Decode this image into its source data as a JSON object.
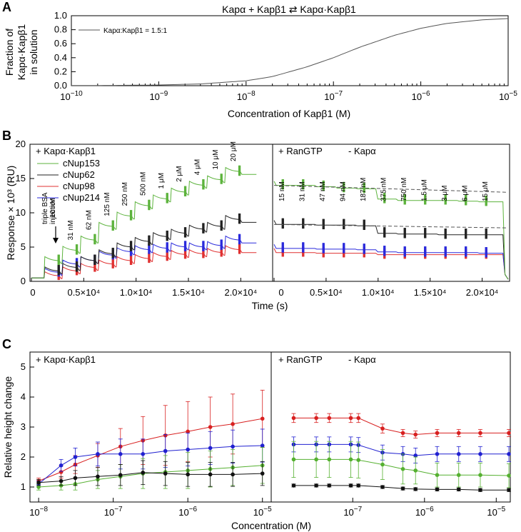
{
  "panel_labels": [
    "A",
    "B",
    "C"
  ],
  "chart_data": [
    {
      "type": "line",
      "panel": "A",
      "title": "Kapα + Kapβ1 ⇄ Kapα·Kapβ1",
      "xlabel": "Concentration of Kapβ1 (M)",
      "ylabel_lines": [
        "Fraction of",
        "Kapα·Kapβ1",
        "in solution"
      ],
      "xscale": "log",
      "xlim": [
        1e-10,
        1e-05
      ],
      "ylim": [
        0,
        1.0
      ],
      "xtick_labels": [
        {
          "base": "10",
          "exp": "−10"
        },
        {
          "base": "10",
          "exp": "−9"
        },
        {
          "base": "10",
          "exp": "−8"
        },
        {
          "base": "10",
          "exp": "−7"
        },
        {
          "base": "10",
          "exp": "−6"
        },
        {
          "base": "10",
          "exp": "−5"
        }
      ],
      "ytick_labels": [
        "0.0",
        "0.2",
        "0.4",
        "0.6",
        "0.8",
        "1.0"
      ],
      "legend_position": "top-left",
      "series": [
        {
          "name": "Kapα:Kapβ1 = 1.5:1",
          "color": "#555555",
          "x": [
            1e-10,
            3e-10,
            1e-09,
            3e-09,
            1e-08,
            2e-08,
            5e-08,
            1e-07,
            2e-07,
            5e-07,
            1e-06,
            2e-06,
            5e-06,
            1e-05
          ],
          "y": [
            0.002,
            0.004,
            0.01,
            0.025,
            0.07,
            0.13,
            0.27,
            0.4,
            0.55,
            0.72,
            0.82,
            0.89,
            0.94,
            0.96
          ]
        }
      ]
    },
    {
      "type": "line",
      "panel": "B",
      "xlabel": "Time (s)",
      "ylabel": "Response × 10³ (RU)",
      "ylim": [
        0,
        20
      ],
      "ytick_labels": [
        "0",
        "5",
        "10",
        "15",
        "20"
      ],
      "xlim": [
        0,
        22500
      ],
      "xtick_labels_left": [
        "0",
        "0.5×10⁴",
        "1.0×10⁴",
        "1.5×10⁴",
        "2.0×10⁴"
      ],
      "xtick_labels_right": [
        "0",
        "0.5×10⁴",
        "1.0×10⁴",
        "1.5×10⁴",
        "2.0×10⁴"
      ],
      "left_header": "+ Kapα·Kapβ1",
      "right_header_1": "+ RanGTP",
      "right_header_2": "- Kapα",
      "legend_position": "top-left",
      "legend": [
        {
          "name": "cNup153",
          "color": "#5cb33c"
        },
        {
          "name": "cNup62",
          "color": "#222222"
        },
        {
          "name": "cNup98",
          "color": "#e03030"
        },
        {
          "name": "cNup214",
          "color": "#2a2adc"
        }
      ],
      "injection_note_lines": [
        "triple BSA",
        "injection"
      ],
      "left_concentrations": [
        "10 nM",
        "31 nM",
        "62 nM",
        "125 nM",
        "250 nM",
        "500 nM",
        "1 μM",
        "2 μM",
        "4 μM",
        "10 μM",
        "20 μM"
      ],
      "right_concentrations": [
        "15 nM",
        "31 nM",
        "47 nM",
        "94 nM",
        "187 nM",
        "375 nM",
        "750 nM",
        "1.5 μM",
        "3 μM",
        "6 μM",
        "15 μM"
      ],
      "left_levels": {
        "cNup153": [
          3.0,
          4.5,
          6.0,
          8.0,
          9.5,
          11.0,
          12.0,
          13.0,
          14.0,
          14.8,
          16.0
        ],
        "cNup62": [
          1.5,
          2.0,
          3.0,
          4.0,
          5.0,
          5.8,
          6.5,
          7.0,
          7.6,
          8.0,
          9.0
        ],
        "cNup214": [
          1.3,
          2.5,
          3.0,
          3.8,
          4.3,
          4.6,
          4.8,
          5.0,
          5.0,
          5.2,
          6.0
        ],
        "cNup98": [
          0.8,
          1.5,
          2.0,
          2.5,
          3.0,
          3.3,
          3.6,
          3.9,
          4.0,
          4.2,
          4.6
        ]
      },
      "right_levels": {
        "cNup153": [
          14.0,
          14.0,
          13.8,
          13.6,
          13.5,
          12.0,
          11.8,
          11.8,
          11.8,
          11.7,
          11.6
        ],
        "cNup62": [
          8.3,
          8.3,
          8.2,
          8.2,
          8.1,
          7.0,
          6.9,
          6.9,
          6.8,
          6.8,
          6.8
        ],
        "cNup214": [
          4.8,
          4.8,
          4.7,
          4.7,
          4.6,
          4.3,
          4.2,
          4.2,
          4.2,
          4.2,
          4.1
        ],
        "cNup98": [
          4.2,
          4.2,
          4.1,
          4.1,
          4.1,
          3.9,
          3.9,
          3.9,
          3.9,
          3.9,
          3.9
        ]
      },
      "dashed_reference": {
        "cNup153": [
          14.0,
          13.0
        ],
        "cNup62": [
          8.3,
          7.8
        ]
      }
    },
    {
      "type": "scatter",
      "panel": "C",
      "xlabel": "Concentration (M)",
      "ylabel": "Relative height change",
      "xscale": "log",
      "ylim": [
        0.5,
        5.5
      ],
      "ytick_labels": [
        "1",
        "2",
        "3",
        "4",
        "5"
      ],
      "left_xlim": [
        8e-09,
        1.2e-05
      ],
      "right_xlim": [
        8e-09,
        1.5e-05
      ],
      "xtick_labels_left": [
        {
          "base": "10",
          "exp": "−8"
        },
        {
          "base": "10",
          "exp": "−7"
        },
        {
          "base": "10",
          "exp": "−6"
        },
        {
          "base": "10",
          "exp": "−5"
        }
      ],
      "xtick_labels_right": [
        {
          "base": "10",
          "exp": "−7"
        },
        {
          "base": "10",
          "exp": "−6"
        },
        {
          "base": "10",
          "exp": "−5"
        }
      ],
      "left_header": "+ Kapα·Kapβ1",
      "right_header_1": "+ RanGTP",
      "right_header_2": "- Kapα",
      "left_x": [
        1e-08,
        2e-08,
        3.1e-08,
        6.2e-08,
        1.25e-07,
        2.5e-07,
        5e-07,
        1e-06,
        2e-06,
        4e-06,
        1e-05
      ],
      "right_x": [
        1.5e-08,
        3.1e-08,
        4.7e-08,
        9.4e-08,
        1.2e-07,
        2.6e-07,
        5e-07,
        7.5e-07,
        1.5e-06,
        3e-06,
        6e-06,
        1.5e-05
      ],
      "series": [
        {
          "name": "cNup98",
          "color": "#d82020",
          "left_y": [
            1.2,
            1.5,
            1.75,
            2.05,
            2.35,
            2.55,
            2.72,
            2.85,
            3.0,
            3.1,
            3.28
          ],
          "left_err": [
            0.1,
            0.2,
            0.3,
            0.4,
            0.6,
            0.8,
            1.0,
            1.0,
            1.0,
            1.0,
            0.95
          ],
          "right_y": [
            3.3,
            3.3,
            3.3,
            3.3,
            3.3,
            2.95,
            2.8,
            2.75,
            2.8,
            2.8,
            2.8,
            2.8
          ],
          "right_err": [
            0.15,
            0.15,
            0.15,
            0.15,
            0.15,
            0.15,
            0.12,
            0.12,
            0.12,
            0.12,
            0.12,
            0.12
          ]
        },
        {
          "name": "cNup214",
          "color": "#2020d0",
          "left_y": [
            1.1,
            1.72,
            2.0,
            2.1,
            2.1,
            2.1,
            2.2,
            2.25,
            2.3,
            2.35,
            2.38
          ],
          "left_err": [
            0.1,
            0.2,
            0.3,
            0.4,
            0.5,
            0.5,
            0.55,
            0.55,
            0.55,
            0.55,
            0.55
          ],
          "right_y": [
            2.42,
            2.42,
            2.42,
            2.42,
            2.4,
            2.15,
            2.1,
            2.05,
            2.1,
            2.1,
            2.1,
            2.1
          ],
          "right_err": [
            0.25,
            0.25,
            0.25,
            0.25,
            0.25,
            0.25,
            0.25,
            0.25,
            0.25,
            0.25,
            0.25,
            0.25
          ]
        },
        {
          "name": "cNup153",
          "color": "#55b030",
          "left_y": [
            1.0,
            1.05,
            1.1,
            1.25,
            1.35,
            1.45,
            1.5,
            1.55,
            1.6,
            1.65,
            1.72
          ],
          "left_err": [
            0.1,
            0.15,
            0.2,
            0.3,
            0.4,
            0.5,
            0.55,
            0.6,
            0.6,
            0.6,
            0.6
          ],
          "right_y": [
            1.92,
            1.92,
            1.92,
            1.92,
            1.9,
            1.75,
            1.6,
            1.55,
            1.4,
            1.4,
            1.4,
            1.38
          ],
          "right_err": [
            0.6,
            0.6,
            0.6,
            0.6,
            0.6,
            0.5,
            0.5,
            0.45,
            0.4,
            0.4,
            0.4,
            0.4
          ]
        },
        {
          "name": "cNup62",
          "color": "#111111",
          "left_y": [
            1.15,
            1.2,
            1.3,
            1.35,
            1.4,
            1.48,
            1.45,
            1.42,
            1.42,
            1.42,
            1.45
          ],
          "left_err": [
            0.1,
            0.15,
            0.25,
            0.3,
            0.35,
            0.4,
            0.4,
            0.4,
            0.4,
            0.4,
            0.4
          ],
          "right_y": [
            1.05,
            1.05,
            1.05,
            1.05,
            1.05,
            1.0,
            0.95,
            0.93,
            0.92,
            0.92,
            0.9,
            0.9
          ],
          "right_err": [
            0.05,
            0.05,
            0.05,
            0.05,
            0.05,
            0.05,
            0.05,
            0.05,
            0.05,
            0.05,
            0.05,
            0.05
          ]
        }
      ]
    }
  ]
}
